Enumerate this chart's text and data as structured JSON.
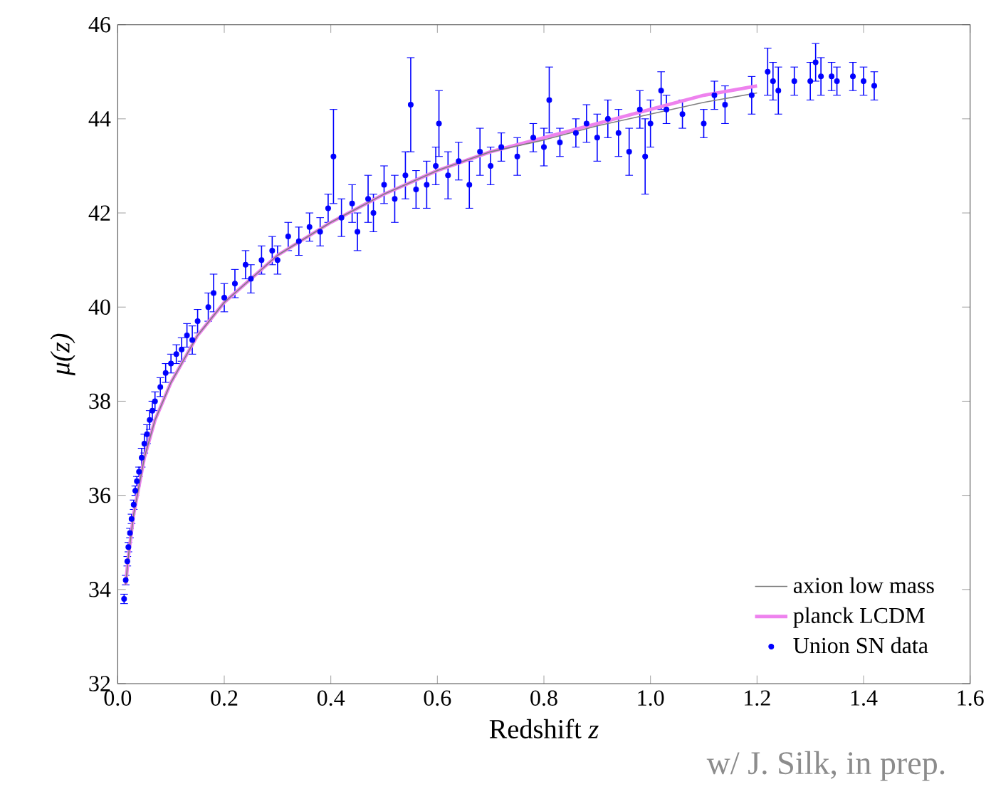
{
  "chart_data": {
    "type": "scatter",
    "xlabel": "Redshift *z*",
    "ylabel": "μ(z)",
    "xlim": [
      0.0,
      1.6
    ],
    "ylim": [
      32,
      46
    ],
    "xticks": [
      {
        "value": 0.0,
        "label": "0.0"
      },
      {
        "value": 0.2,
        "label": "0.2"
      },
      {
        "value": 0.4,
        "label": "0.4"
      },
      {
        "value": 0.6,
        "label": "0.6"
      },
      {
        "value": 0.8,
        "label": "0.8"
      },
      {
        "value": 1.0,
        "label": "1.0"
      },
      {
        "value": 1.2,
        "label": "1.2"
      },
      {
        "value": 1.4,
        "label": "1.4"
      },
      {
        "value": 1.6,
        "label": "1.6"
      }
    ],
    "yticks": [
      32,
      34,
      36,
      38,
      40,
      42,
      44,
      46
    ],
    "legend": "bottom right",
    "grid": false,
    "annotations": [
      "w/ J. Silk, in prep."
    ],
    "series": [
      {
        "name": "axion low mass",
        "type": "line",
        "color": "#808080",
        "line_style": "solid",
        "x": [
          0.015,
          0.02,
          0.03,
          0.05,
          0.07,
          0.1,
          0.15,
          0.2,
          0.3,
          0.4,
          0.5,
          0.6,
          0.7,
          0.8,
          0.9,
          1.0,
          1.1,
          1.2
        ],
        "values": [
          34.1,
          34.7,
          35.6,
          36.8,
          37.6,
          38.4,
          39.4,
          40.1,
          41.1,
          41.8,
          42.4,
          42.9,
          43.3,
          43.55,
          43.85,
          44.1,
          44.35,
          44.55
        ]
      },
      {
        "name": "planck LCDM",
        "type": "line",
        "color": "#ee82ee",
        "line_style": "solid",
        "x": [
          0.015,
          0.02,
          0.03,
          0.05,
          0.07,
          0.1,
          0.15,
          0.2,
          0.3,
          0.4,
          0.5,
          0.6,
          0.7,
          0.8,
          0.9,
          1.0,
          1.1,
          1.2
        ],
        "values": [
          34.1,
          34.7,
          35.6,
          36.8,
          37.6,
          38.4,
          39.4,
          40.1,
          41.1,
          41.8,
          42.4,
          42.9,
          43.3,
          43.6,
          43.9,
          44.2,
          44.5,
          44.7
        ]
      },
      {
        "name": "Union SN data",
        "type": "scatter",
        "color": "#0000ff",
        "marker": "circle",
        "x": [
          0.012,
          0.015,
          0.018,
          0.02,
          0.023,
          0.026,
          0.03,
          0.033,
          0.036,
          0.04,
          0.045,
          0.05,
          0.055,
          0.06,
          0.065,
          0.07,
          0.08,
          0.09,
          0.1,
          0.11,
          0.12,
          0.13,
          0.14,
          0.15,
          0.17,
          0.18,
          0.2,
          0.22,
          0.24,
          0.25,
          0.27,
          0.29,
          0.3,
          0.32,
          0.34,
          0.36,
          0.38,
          0.395,
          0.405,
          0.42,
          0.44,
          0.45,
          0.47,
          0.48,
          0.5,
          0.52,
          0.54,
          0.55,
          0.56,
          0.58,
          0.597,
          0.603,
          0.62,
          0.64,
          0.66,
          0.68,
          0.7,
          0.72,
          0.75,
          0.78,
          0.8,
          0.81,
          0.83,
          0.86,
          0.88,
          0.9,
          0.92,
          0.94,
          0.96,
          0.98,
          0.99,
          1.0,
          1.02,
          1.03,
          1.06,
          1.1,
          1.12,
          1.14,
          1.19,
          1.22,
          1.23,
          1.24,
          1.27,
          1.3,
          1.31,
          1.32,
          1.34,
          1.35,
          1.38,
          1.4,
          1.42
        ],
        "values": [
          33.8,
          34.2,
          34.6,
          34.9,
          35.2,
          35.5,
          35.8,
          36.1,
          36.3,
          36.5,
          36.8,
          37.1,
          37.3,
          37.6,
          37.8,
          38.0,
          38.3,
          38.6,
          38.8,
          39.0,
          39.1,
          39.4,
          39.3,
          39.7,
          40.0,
          40.3,
          40.2,
          40.5,
          40.9,
          40.6,
          41.0,
          41.2,
          41.0,
          41.5,
          41.4,
          41.7,
          41.6,
          42.1,
          43.2,
          41.9,
          42.2,
          41.6,
          42.3,
          42.0,
          42.6,
          42.3,
          42.8,
          44.3,
          42.5,
          42.6,
          43.0,
          43.9,
          42.8,
          43.1,
          42.6,
          43.3,
          43.0,
          43.4,
          43.2,
          43.6,
          43.4,
          44.4,
          43.5,
          43.7,
          43.9,
          43.6,
          44.0,
          43.7,
          43.3,
          44.2,
          43.2,
          43.9,
          44.6,
          44.2,
          44.1,
          43.9,
          44.5,
          44.3,
          44.5,
          45.0,
          44.8,
          44.6,
          44.8,
          44.8,
          45.2,
          44.9,
          44.9,
          44.8,
          44.9,
          44.8,
          44.7
        ],
        "errors": [
          0.1,
          0.1,
          0.1,
          0.1,
          0.1,
          0.1,
          0.1,
          0.1,
          0.1,
          0.1,
          0.2,
          0.2,
          0.2,
          0.2,
          0.2,
          0.2,
          0.2,
          0.2,
          0.2,
          0.2,
          0.25,
          0.25,
          0.3,
          0.25,
          0.3,
          0.4,
          0.3,
          0.3,
          0.3,
          0.3,
          0.3,
          0.3,
          0.3,
          0.3,
          0.3,
          0.3,
          0.3,
          0.3,
          1.0,
          0.4,
          0.4,
          0.4,
          0.5,
          0.4,
          0.4,
          0.5,
          0.5,
          1.0,
          0.4,
          0.5,
          0.4,
          0.7,
          0.5,
          0.4,
          0.5,
          0.5,
          0.4,
          0.3,
          0.4,
          0.3,
          0.4,
          0.7,
          0.3,
          0.3,
          0.4,
          0.5,
          0.4,
          0.5,
          0.5,
          0.4,
          0.8,
          0.5,
          0.4,
          0.3,
          0.3,
          0.3,
          0.3,
          0.4,
          0.4,
          0.5,
          0.4,
          0.5,
          0.3,
          0.4,
          0.4,
          0.4,
          0.3,
          0.3,
          0.3,
          0.3,
          0.3
        ]
      }
    ]
  }
}
